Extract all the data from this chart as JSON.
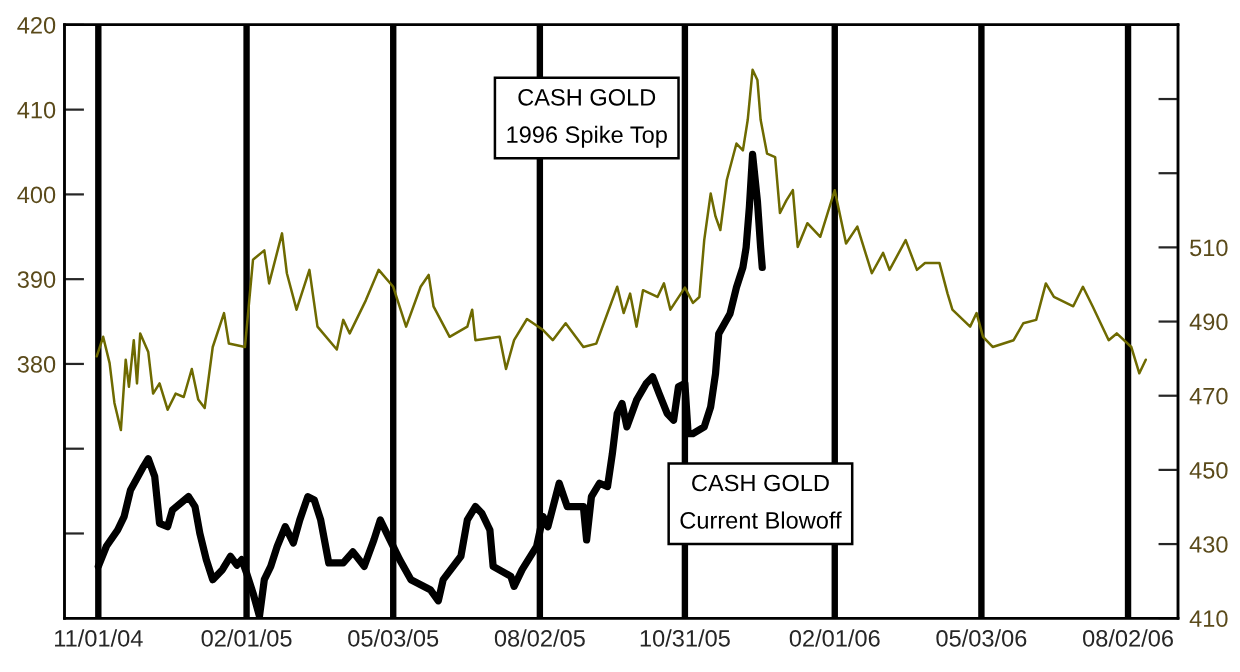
{
  "chart_data": {
    "type": "line",
    "xlim": [
      "2004-10-11",
      "2006-09-02"
    ],
    "xticks": [
      {
        "value": "2004-11-01",
        "label": "11/01/04"
      },
      {
        "value": "2005-02-01",
        "label": "02/01/05"
      },
      {
        "value": "2005-05-03",
        "label": "05/03/05"
      },
      {
        "value": "2005-08-02",
        "label": "08/02/05"
      },
      {
        "value": "2005-10-31",
        "label": "10/31/05"
      },
      {
        "value": "2006-02-01",
        "label": "02/01/06"
      },
      {
        "value": "2006-05-03",
        "label": "05/03/06"
      },
      {
        "value": "2006-08-02",
        "label": "08/02/06"
      }
    ],
    "ylim": [
      350,
      420
    ],
    "yticks": [
      {
        "value": 360,
        "label": null
      },
      {
        "value": 370,
        "label": null
      },
      380,
      390,
      400,
      410,
      420
    ],
    "y2lim": [
      410,
      570
    ],
    "y2ticks": [
      410,
      430,
      450,
      470,
      490,
      510,
      {
        "value": 530,
        "label": null
      },
      {
        "value": 550,
        "label": null
      }
    ],
    "grid": "x",
    "series": [
      {
        "name": "CASH GOLD\n1996 Spike Top",
        "color": "#6e6a00",
        "axis": "y",
        "x": [
          "2004-10-31",
          "2004-11-04",
          "2004-11-08",
          "2004-11-11",
          "2004-11-15",
          "2004-11-18",
          "2004-11-20",
          "2004-11-23",
          "2004-11-25",
          "2004-11-27",
          "2004-12-02",
          "2004-12-05",
          "2004-12-09",
          "2004-12-14",
          "2004-12-19",
          "2004-12-24",
          "2004-12-29",
          "2005-01-02",
          "2005-01-06",
          "2005-01-11",
          "2005-01-18",
          "2005-01-21",
          "2005-01-31",
          "2005-02-05",
          "2005-02-12",
          "2005-02-15",
          "2005-02-23",
          "2005-02-26",
          "2005-03-04",
          "2005-03-12",
          "2005-03-17",
          "2005-03-29",
          "2005-04-02",
          "2005-04-06",
          "2005-04-16",
          "2005-04-24",
          "2005-05-03",
          "2005-05-11",
          "2005-05-20",
          "2005-05-25",
          "2005-05-28",
          "2005-06-07",
          "2005-06-18",
          "2005-06-21",
          "2005-06-23",
          "2005-07-08",
          "2005-07-12",
          "2005-07-17",
          "2005-07-25",
          "2005-08-04",
          "2005-08-10",
          "2005-08-18",
          "2005-08-29",
          "2005-09-06",
          "2005-09-19",
          "2005-09-23",
          "2005-09-27",
          "2005-10-01",
          "2005-10-05",
          "2005-10-14",
          "2005-10-18",
          "2005-10-22",
          "2005-10-31",
          "2005-11-05",
          "2005-11-09",
          "2005-11-12",
          "2005-11-16",
          "2005-11-19",
          "2005-11-22",
          "2005-11-26",
          "2005-12-02",
          "2005-12-06",
          "2005-12-09",
          "2005-12-12",
          "2005-12-15",
          "2005-12-17",
          "2005-12-21",
          "2005-12-26",
          "2005-12-29",
          "2006-01-02",
          "2006-01-06",
          "2006-01-09",
          "2006-01-15",
          "2006-01-23",
          "2006-02-01",
          "2006-02-08",
          "2006-02-15",
          "2006-02-24",
          "2006-03-03",
          "2006-03-07",
          "2006-03-17",
          "2006-03-24",
          "2006-03-29",
          "2006-04-07",
          "2006-04-12",
          "2006-04-15",
          "2006-04-26",
          "2006-04-30",
          "2006-05-04",
          "2006-05-10",
          "2006-05-23",
          "2006-05-29",
          "2006-06-06",
          "2006-06-12",
          "2006-06-17",
          "2006-06-29",
          "2006-07-05",
          "2006-07-11",
          "2006-07-21",
          "2006-07-26",
          "2006-08-04",
          "2006-08-09",
          "2006-08-13"
        ],
        "values": [
          380.9,
          383.2,
          380.1,
          375.4,
          372.2,
          380.5,
          377.3,
          382.8,
          377.7,
          383.6,
          381.4,
          376.5,
          377.7,
          374.6,
          376.5,
          376.1,
          379.4,
          375.8,
          374.8,
          382.0,
          386.0,
          382.4,
          382.0,
          392.3,
          393.4,
          389.5,
          395.4,
          390.7,
          386.4,
          391.1,
          384.4,
          381.7,
          385.2,
          383.6,
          387.5,
          391.1,
          389.1,
          384.4,
          389.1,
          390.5,
          386.8,
          383.2,
          384.4,
          386.4,
          382.8,
          383.2,
          379.4,
          382.8,
          385.3,
          384.0,
          382.8,
          384.8,
          382.0,
          382.4,
          389.1,
          386.0,
          388.3,
          384.4,
          388.7,
          387.9,
          389.5,
          386.4,
          389.0,
          387.2,
          387.9,
          394.6,
          400.1,
          397.4,
          395.8,
          401.7,
          406.0,
          405.2,
          408.8,
          414.7,
          413.5,
          408.8,
          404.8,
          404.4,
          397.8,
          399.3,
          400.5,
          393.8,
          396.6,
          395.0,
          400.5,
          394.2,
          396.2,
          390.7,
          393.1,
          391.1,
          394.6,
          391.1,
          391.9,
          391.9,
          388.3,
          386.4,
          384.4,
          386.0,
          383.2,
          382.0,
          382.8,
          384.8,
          385.2,
          389.5,
          387.9,
          386.8,
          389.1,
          386.8,
          382.8,
          383.6,
          382.0,
          378.9,
          380.5
        ]
      },
      {
        "name": "CASH GOLD\nCurrent Blowoff",
        "color": "#000000",
        "axis": "y2",
        "x": [
          "2004-11-01",
          "2004-11-06",
          "2004-11-13",
          "2004-11-17",
          "2004-11-21",
          "2004-11-29",
          "2004-12-02",
          "2004-12-06",
          "2004-12-09",
          "2004-12-14",
          "2004-12-17",
          "2004-12-27",
          "2004-12-31",
          "2005-01-03",
          "2005-01-07",
          "2005-01-11",
          "2005-01-17",
          "2005-01-22",
          "2005-01-26",
          "2005-01-29",
          "2005-02-01",
          "2005-02-05",
          "2005-02-09",
          "2005-02-12",
          "2005-02-16",
          "2005-02-20",
          "2005-02-25",
          "2005-03-02",
          "2005-03-06",
          "2005-03-11",
          "2005-03-15",
          "2005-03-19",
          "2005-03-24",
          "2005-04-02",
          "2005-04-08",
          "2005-04-15",
          "2005-04-21",
          "2005-04-25",
          "2005-04-29",
          "2005-05-07",
          "2005-05-14",
          "2005-05-26",
          "2005-05-31",
          "2005-06-03",
          "2005-06-14",
          "2005-06-18",
          "2005-06-23",
          "2005-06-27",
          "2005-07-02",
          "2005-07-04",
          "2005-07-15",
          "2005-07-17",
          "2005-07-22",
          "2005-07-31",
          "2005-08-04",
          "2005-08-07",
          "2005-08-14",
          "2005-08-19",
          "2005-08-29",
          "2005-08-31",
          "2005-09-03",
          "2005-09-08",
          "2005-09-13",
          "2005-09-16",
          "2005-09-19",
          "2005-09-22",
          "2005-09-25",
          "2005-10-01",
          "2005-10-07",
          "2005-10-11",
          "2005-10-15",
          "2005-10-20",
          "2005-10-24",
          "2005-10-27",
          "2005-10-31",
          "2005-11-02",
          "2005-11-05",
          "2005-11-12",
          "2005-11-16",
          "2005-11-19",
          "2005-11-21",
          "2005-11-28",
          "2005-12-02",
          "2005-12-06",
          "2005-12-08",
          "2005-12-10",
          "2005-12-12",
          "2005-12-15",
          "2005-12-17",
          "2005-12-18"
        ],
        "values": [
          424.0,
          429.4,
          433.8,
          437.4,
          444.6,
          450.9,
          453.0,
          448.2,
          435.6,
          434.7,
          439.2,
          442.8,
          440.1,
          432.9,
          425.8,
          420.4,
          423.1,
          426.7,
          424.3,
          425.8,
          422.2,
          416.8,
          410.5,
          420.4,
          424.0,
          429.4,
          434.7,
          430.3,
          436.5,
          442.8,
          441.9,
          436.5,
          424.9,
          424.9,
          427.9,
          424.0,
          431.1,
          436.5,
          432.9,
          425.8,
          420.4,
          417.7,
          414.7,
          420.4,
          426.7,
          436.5,
          440.1,
          438.3,
          433.8,
          424.0,
          421.3,
          418.6,
          423.1,
          429.4,
          437.4,
          434.7,
          446.4,
          440.1,
          440.1,
          431.1,
          442.8,
          446.4,
          445.5,
          454.4,
          465.2,
          467.9,
          461.6,
          468.8,
          473.3,
          475.1,
          470.6,
          465.2,
          463.4,
          472.4,
          473.3,
          459.8,
          459.8,
          461.6,
          467.0,
          475.9,
          486.7,
          492.1,
          499.2,
          504.6,
          510.0,
          520.8,
          535.1,
          522.5,
          510.0,
          504.6
        ]
      }
    ]
  }
}
